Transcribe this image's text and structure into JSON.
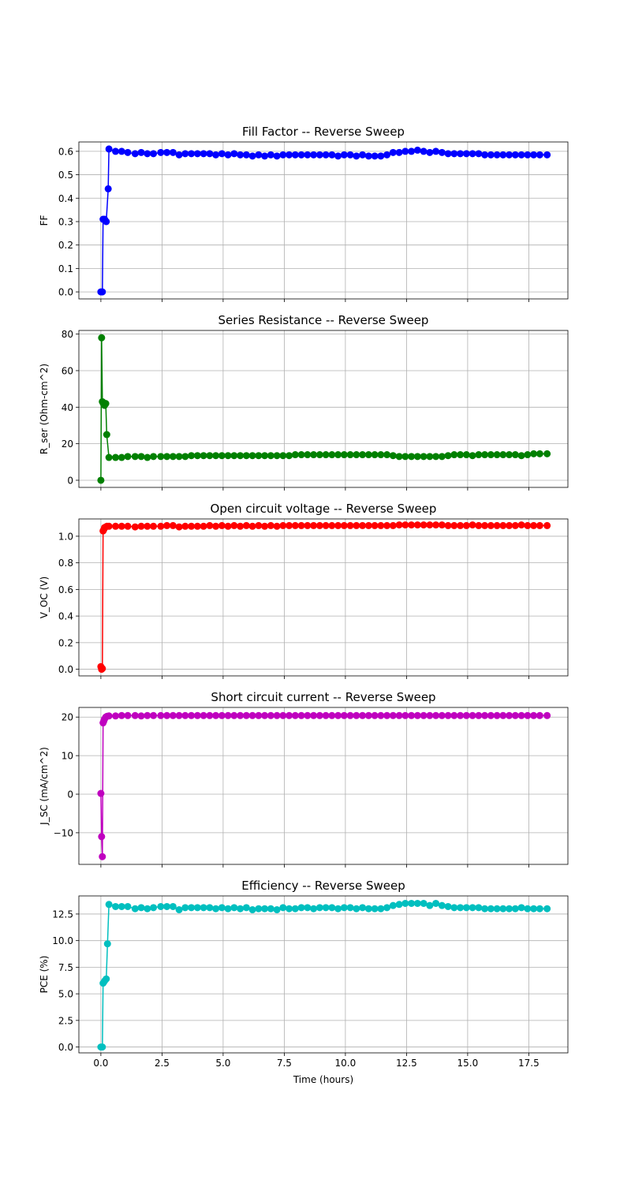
{
  "chart_data": [
    {
      "type": "line",
      "title": "Fill Factor -- Reverse Sweep",
      "ylabel": "FF",
      "xlabel": "",
      "color": "#0000ff",
      "xlim": [
        -0.9,
        19.1
      ],
      "ylim": [
        -0.03,
        0.64
      ],
      "yticks": [
        0.0,
        0.1,
        0.2,
        0.3,
        0.4,
        0.5,
        0.6
      ],
      "ytick_labels": [
        "0.0",
        "0.1",
        "0.2",
        "0.3",
        "0.4",
        "0.5",
        "0.6"
      ],
      "xticks": [
        0,
        2.5,
        5,
        7.5,
        10,
        12.5,
        15,
        17.5
      ],
      "xtick_labels": [],
      "grid": true,
      "x": [
        0.0,
        0.06,
        0.09,
        0.15,
        0.22,
        0.3,
        0.33,
        0.6,
        0.85,
        1.1,
        1.4,
        1.65,
        1.9,
        2.15,
        2.45,
        2.7,
        2.95,
        3.2,
        3.45,
        3.7,
        3.95,
        4.2,
        4.45,
        4.7,
        4.95,
        5.2,
        5.45,
        5.7,
        5.95,
        6.2,
        6.45,
        6.7,
        6.95,
        7.2,
        7.45,
        7.7,
        7.95,
        8.2,
        8.45,
        8.7,
        8.95,
        9.2,
        9.45,
        9.7,
        9.95,
        10.2,
        10.45,
        10.7,
        10.95,
        11.2,
        11.45,
        11.7,
        11.95,
        12.2,
        12.45,
        12.7,
        12.95,
        13.2,
        13.45,
        13.7,
        13.95,
        14.2,
        14.45,
        14.7,
        14.95,
        15.2,
        15.45,
        15.7,
        15.95,
        16.2,
        16.45,
        16.7,
        16.95,
        17.2,
        17.45,
        17.7,
        17.95,
        18.25
      ],
      "y": [
        0.0,
        0.0,
        0.31,
        0.31,
        0.3,
        0.44,
        0.61,
        0.6,
        0.6,
        0.595,
        0.59,
        0.595,
        0.59,
        0.59,
        0.595,
        0.595,
        0.595,
        0.585,
        0.59,
        0.59,
        0.59,
        0.59,
        0.59,
        0.585,
        0.59,
        0.585,
        0.59,
        0.585,
        0.585,
        0.58,
        0.585,
        0.58,
        0.585,
        0.58,
        0.585,
        0.585,
        0.585,
        0.585,
        0.585,
        0.585,
        0.585,
        0.585,
        0.585,
        0.58,
        0.585,
        0.585,
        0.58,
        0.585,
        0.58,
        0.58,
        0.58,
        0.585,
        0.595,
        0.595,
        0.6,
        0.6,
        0.605,
        0.6,
        0.595,
        0.6,
        0.595,
        0.59,
        0.59,
        0.59,
        0.59,
        0.59,
        0.59,
        0.585,
        0.585,
        0.585,
        0.585,
        0.585,
        0.585,
        0.585,
        0.585,
        0.585,
        0.585,
        0.585
      ]
    },
    {
      "type": "line",
      "title": "Series Resistance -- Reverse Sweep",
      "ylabel": "R_ser (Ohm-cm^2)",
      "xlabel": "",
      "color": "#008000",
      "xlim": [
        -0.9,
        19.1
      ],
      "ylim": [
        -3.9,
        82
      ],
      "yticks": [
        0,
        20,
        40,
        60,
        80
      ],
      "ytick_labels": [
        "0",
        "20",
        "40",
        "60",
        "80"
      ],
      "xticks": [
        0,
        2.5,
        5,
        7.5,
        10,
        12.5,
        15,
        17.5
      ],
      "xtick_labels": [],
      "grid": true,
      "x": [
        0.0,
        0.03,
        0.06,
        0.1,
        0.15,
        0.2,
        0.24,
        0.33,
        0.6,
        0.85,
        1.1,
        1.4,
        1.65,
        1.9,
        2.15,
        2.45,
        2.7,
        2.95,
        3.2,
        3.45,
        3.7,
        3.95,
        4.2,
        4.45,
        4.7,
        4.95,
        5.2,
        5.45,
        5.7,
        5.95,
        6.2,
        6.45,
        6.7,
        6.95,
        7.2,
        7.45,
        7.7,
        7.95,
        8.2,
        8.45,
        8.7,
        8.95,
        9.2,
        9.45,
        9.7,
        9.95,
        10.2,
        10.45,
        10.7,
        10.95,
        11.2,
        11.45,
        11.7,
        11.95,
        12.2,
        12.45,
        12.7,
        12.95,
        13.2,
        13.45,
        13.7,
        13.95,
        14.2,
        14.45,
        14.7,
        14.95,
        15.2,
        15.45,
        15.7,
        15.95,
        16.2,
        16.45,
        16.7,
        16.95,
        17.2,
        17.45,
        17.7,
        17.95,
        18.25
      ],
      "y": [
        0.0,
        78,
        43,
        42,
        41,
        42,
        25,
        12.5,
        12.5,
        12.5,
        13,
        13,
        13,
        12.5,
        13,
        13,
        13,
        13,
        13,
        13,
        13.5,
        13.5,
        13.5,
        13.5,
        13.5,
        13.5,
        13.5,
        13.5,
        13.5,
        13.5,
        13.5,
        13.5,
        13.5,
        13.5,
        13.5,
        13.5,
        13.5,
        14,
        14,
        14,
        14,
        14,
        14,
        14,
        14,
        14,
        14,
        14,
        14,
        14,
        14,
        14,
        14,
        13.5,
        13,
        13,
        13,
        13,
        13,
        13,
        13,
        13,
        13.5,
        14,
        14,
        14,
        13.5,
        14,
        14,
        14,
        14,
        14,
        14,
        14,
        13.5,
        14,
        14.5,
        14.5,
        14.5
      ]
    },
    {
      "type": "line",
      "title": "Open circuit voltage -- Reverse Sweep",
      "ylabel": "V_OC (V)",
      "xlabel": "",
      "color": "#ff0000",
      "xlim": [
        -0.9,
        19.1
      ],
      "ylim": [
        -0.05,
        1.13
      ],
      "yticks": [
        0.0,
        0.2,
        0.4,
        0.6,
        0.8,
        1.0
      ],
      "ytick_labels": [
        "0.0",
        "0.2",
        "0.4",
        "0.6",
        "0.8",
        "1.0"
      ],
      "xticks": [
        0,
        2.5,
        5,
        7.5,
        10,
        12.5,
        15,
        17.5
      ],
      "xtick_labels": [],
      "grid": true,
      "x": [
        0.0,
        0.03,
        0.06,
        0.09,
        0.12,
        0.15,
        0.2,
        0.25,
        0.33,
        0.6,
        0.85,
        1.1,
        1.4,
        1.65,
        1.9,
        2.15,
        2.45,
        2.7,
        2.95,
        3.2,
        3.45,
        3.7,
        3.95,
        4.2,
        4.45,
        4.7,
        4.95,
        5.2,
        5.45,
        5.7,
        5.95,
        6.2,
        6.45,
        6.7,
        6.95,
        7.2,
        7.45,
        7.7,
        7.95,
        8.2,
        8.45,
        8.7,
        8.95,
        9.2,
        9.45,
        9.7,
        9.95,
        10.2,
        10.45,
        10.7,
        10.95,
        11.2,
        11.45,
        11.7,
        11.95,
        12.2,
        12.45,
        12.7,
        12.95,
        13.2,
        13.45,
        13.7,
        13.95,
        14.2,
        14.45,
        14.7,
        14.95,
        15.2,
        15.45,
        15.7,
        15.95,
        16.2,
        16.45,
        16.7,
        16.95,
        17.2,
        17.45,
        17.7,
        17.95,
        18.25
      ],
      "y": [
        0.02,
        0.0,
        0.005,
        1.04,
        1.05,
        1.065,
        1.07,
        1.075,
        1.075,
        1.075,
        1.075,
        1.075,
        1.07,
        1.075,
        1.075,
        1.075,
        1.075,
        1.08,
        1.08,
        1.07,
        1.075,
        1.075,
        1.075,
        1.075,
        1.08,
        1.075,
        1.08,
        1.075,
        1.08,
        1.075,
        1.08,
        1.075,
        1.08,
        1.075,
        1.08,
        1.075,
        1.08,
        1.08,
        1.08,
        1.08,
        1.08,
        1.08,
        1.08,
        1.08,
        1.08,
        1.08,
        1.08,
        1.08,
        1.08,
        1.08,
        1.08,
        1.08,
        1.08,
        1.08,
        1.08,
        1.085,
        1.085,
        1.085,
        1.085,
        1.085,
        1.085,
        1.085,
        1.085,
        1.08,
        1.08,
        1.08,
        1.08,
        1.085,
        1.08,
        1.08,
        1.08,
        1.08,
        1.08,
        1.08,
        1.08,
        1.085,
        1.08,
        1.08,
        1.08,
        1.08
      ]
    },
    {
      "type": "line",
      "title": "Short circuit current -- Reverse Sweep",
      "ylabel": "J_SC (mA/cm^2)",
      "xlabel": "",
      "color": "#bf00bf",
      "xlim": [
        -0.9,
        19.1
      ],
      "ylim": [
        -18.2,
        22.5
      ],
      "yticks": [
        -10,
        0,
        10,
        20
      ],
      "ytick_labels": [
        "−10",
        "0",
        "10",
        "20"
      ],
      "xticks": [
        0,
        2.5,
        5,
        7.5,
        10,
        12.5,
        15,
        17.5
      ],
      "xtick_labels": [],
      "grid": true,
      "x": [
        0.0,
        0.03,
        0.06,
        0.09,
        0.12,
        0.15,
        0.2,
        0.25,
        0.33,
        0.6,
        0.85,
        1.1,
        1.4,
        1.65,
        1.9,
        2.15,
        2.45,
        2.7,
        2.95,
        3.2,
        3.45,
        3.7,
        3.95,
        4.2,
        4.45,
        4.7,
        4.95,
        5.2,
        5.45,
        5.7,
        5.95,
        6.2,
        6.45,
        6.7,
        6.95,
        7.2,
        7.45,
        7.7,
        7.95,
        8.2,
        8.45,
        8.7,
        8.95,
        9.2,
        9.45,
        9.7,
        9.95,
        10.2,
        10.45,
        10.7,
        10.95,
        11.2,
        11.45,
        11.7,
        11.95,
        12.2,
        12.45,
        12.7,
        12.95,
        13.2,
        13.45,
        13.7,
        13.95,
        14.2,
        14.45,
        14.7,
        14.95,
        15.2,
        15.45,
        15.7,
        15.95,
        16.2,
        16.45,
        16.7,
        16.95,
        17.2,
        17.45,
        17.7,
        17.95,
        18.25
      ],
      "y": [
        0.2,
        -11,
        -16.2,
        18.5,
        19.0,
        19.5,
        20.0,
        20.2,
        20.3,
        20.3,
        20.4,
        20.4,
        20.4,
        20.3,
        20.4,
        20.4,
        20.4,
        20.4,
        20.4,
        20.4,
        20.4,
        20.4,
        20.4,
        20.4,
        20.4,
        20.4,
        20.4,
        20.4,
        20.4,
        20.4,
        20.4,
        20.4,
        20.4,
        20.4,
        20.4,
        20.4,
        20.4,
        20.4,
        20.4,
        20.4,
        20.4,
        20.4,
        20.4,
        20.4,
        20.4,
        20.4,
        20.4,
        20.4,
        20.4,
        20.4,
        20.4,
        20.4,
        20.4,
        20.4,
        20.4,
        20.4,
        20.4,
        20.4,
        20.4,
        20.4,
        20.4,
        20.4,
        20.4,
        20.4,
        20.4,
        20.4,
        20.4,
        20.4,
        20.4,
        20.4,
        20.4,
        20.4,
        20.4,
        20.4,
        20.4,
        20.4,
        20.4,
        20.4,
        20.4,
        20.4
      ]
    },
    {
      "type": "line",
      "title": "Efficiency -- Reverse Sweep",
      "ylabel": "PCE (%)",
      "xlabel": "Time (hours)",
      "color": "#00bfbf",
      "xlim": [
        -0.9,
        19.1
      ],
      "ylim": [
        -0.55,
        14.2
      ],
      "yticks": [
        0.0,
        2.5,
        5.0,
        7.5,
        10.0,
        12.5
      ],
      "ytick_labels": [
        "0.0",
        "2.5",
        "5.0",
        "7.5",
        "10.0",
        "12.5"
      ],
      "xticks": [
        0,
        2.5,
        5,
        7.5,
        10,
        12.5,
        15,
        17.5
      ],
      "xtick_labels": [
        "0.0",
        "2.5",
        "5.0",
        "7.5",
        "10.0",
        "12.5",
        "15.0",
        "17.5"
      ],
      "grid": true,
      "x": [
        0.0,
        0.06,
        0.09,
        0.15,
        0.22,
        0.27,
        0.33,
        0.6,
        0.85,
        1.1,
        1.4,
        1.65,
        1.9,
        2.15,
        2.45,
        2.7,
        2.95,
        3.2,
        3.45,
        3.7,
        3.95,
        4.2,
        4.45,
        4.7,
        4.95,
        5.2,
        5.45,
        5.7,
        5.95,
        6.2,
        6.45,
        6.7,
        6.95,
        7.2,
        7.45,
        7.7,
        7.95,
        8.2,
        8.45,
        8.7,
        8.95,
        9.2,
        9.45,
        9.7,
        9.95,
        10.2,
        10.45,
        10.7,
        10.95,
        11.2,
        11.45,
        11.7,
        11.95,
        12.2,
        12.45,
        12.7,
        12.95,
        13.2,
        13.45,
        13.7,
        13.95,
        14.2,
        14.45,
        14.7,
        14.95,
        15.2,
        15.45,
        15.7,
        15.95,
        16.2,
        16.45,
        16.7,
        16.95,
        17.2,
        17.45,
        17.7,
        17.95,
        18.25
      ],
      "y": [
        0.0,
        0.0,
        6.0,
        6.2,
        6.4,
        9.7,
        13.4,
        13.2,
        13.2,
        13.2,
        13.0,
        13.1,
        13.0,
        13.1,
        13.2,
        13.2,
        13.2,
        12.9,
        13.1,
        13.1,
        13.1,
        13.1,
        13.1,
        13.0,
        13.1,
        13.0,
        13.1,
        13.0,
        13.1,
        12.9,
        13.0,
        13.0,
        13.0,
        12.9,
        13.1,
        13.0,
        13.0,
        13.1,
        13.1,
        13.0,
        13.1,
        13.1,
        13.1,
        13.0,
        13.1,
        13.1,
        13.0,
        13.1,
        13.0,
        13.0,
        13.0,
        13.1,
        13.3,
        13.4,
        13.5,
        13.5,
        13.5,
        13.5,
        13.3,
        13.5,
        13.3,
        13.2,
        13.1,
        13.1,
        13.1,
        13.1,
        13.1,
        13.0,
        13.0,
        13.0,
        13.0,
        13.0,
        13.0,
        13.1,
        13.0,
        13.0,
        13.0,
        13.0
      ]
    }
  ]
}
